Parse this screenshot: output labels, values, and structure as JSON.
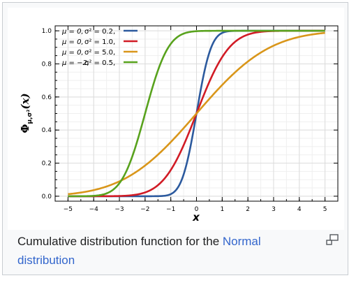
{
  "chart_data": {
    "type": "line",
    "xlabel": "x",
    "ylabel_main": "Φ",
    "ylabel_sub": "μ,σ²",
    "ylabel_tail": "(x)",
    "xlim": [
      -5.5,
      5.5
    ],
    "ylim": [
      -0.03,
      1.03
    ],
    "x_ticks": [
      -5,
      -4,
      -3,
      -2,
      -1,
      0,
      1,
      2,
      3,
      4,
      5
    ],
    "y_ticks": [
      0.0,
      0.2,
      0.4,
      0.6,
      0.8,
      1.0
    ],
    "y_tick_labels": [
      "0.0",
      "0.2",
      "0.4",
      "0.6",
      "0.8",
      "1.0"
    ],
    "grid": true,
    "legend_position": "top-left",
    "series": [
      {
        "mu_label": "μ = 0,",
        "var_label": "σ² = 0.2,",
        "mu": 0,
        "variance": 0.2,
        "color": "#2c5a9e"
      },
      {
        "mu_label": "μ = 0,",
        "var_label": "σ² = 1.0,",
        "mu": 0,
        "variance": 1.0,
        "color": "#d11b25"
      },
      {
        "mu_label": "μ = 0,",
        "var_label": "σ² = 5.0,",
        "mu": 0,
        "variance": 5.0,
        "color": "#d9961a"
      },
      {
        "mu_label": "μ = −2,",
        "var_label": "σ² = 0.5,",
        "mu": -2,
        "variance": 0.5,
        "color": "#58a21d"
      }
    ]
  },
  "caption": {
    "text": "Cumulative distribution function for the ",
    "link": "Normal distribution"
  },
  "icons": {
    "enlarge": "magnify-icon"
  }
}
